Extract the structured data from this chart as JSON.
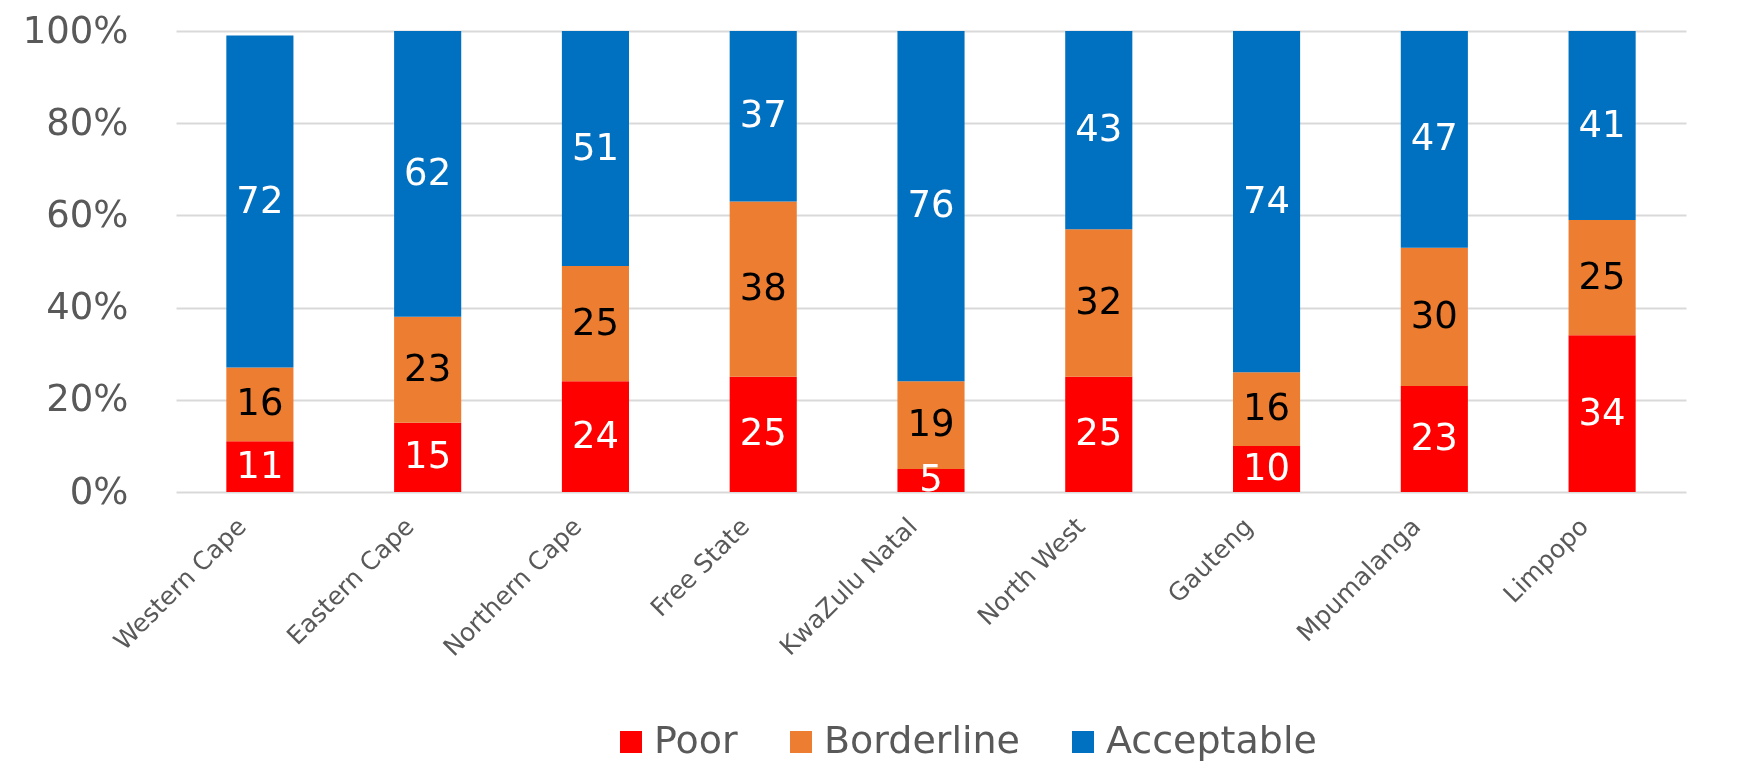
{
  "chart_data": {
    "type": "bar",
    "stacked": true,
    "categories": [
      "Western Cape",
      "Eastern Cape",
      "Northern Cape",
      "Free State",
      "KwaZulu Natal",
      "North West",
      "Gauteng",
      "Mpumalanga",
      "Limpopo"
    ],
    "series": [
      {
        "name": "Poor",
        "color": "#ff0000",
        "values": [
          11,
          15,
          24,
          25,
          5,
          25,
          10,
          23,
          34
        ]
      },
      {
        "name": "Borderline",
        "color": "#ed7d31",
        "values": [
          16,
          23,
          25,
          38,
          19,
          32,
          16,
          30,
          25
        ]
      },
      {
        "name": "Acceptable",
        "color": "#0070c0",
        "values": [
          72,
          62,
          51,
          37,
          76,
          43,
          74,
          47,
          41
        ]
      }
    ],
    "ylim": [
      0,
      100
    ],
    "yticks": [
      {
        "value": 0,
        "label": "0%"
      },
      {
        "value": 20,
        "label": "20%"
      },
      {
        "value": 40,
        "label": "40%"
      },
      {
        "value": 60,
        "label": "60%"
      },
      {
        "value": 80,
        "label": "80%"
      },
      {
        "value": 100,
        "label": "100%"
      }
    ],
    "grid": "y",
    "legend": "bottom",
    "data_labels": true
  }
}
